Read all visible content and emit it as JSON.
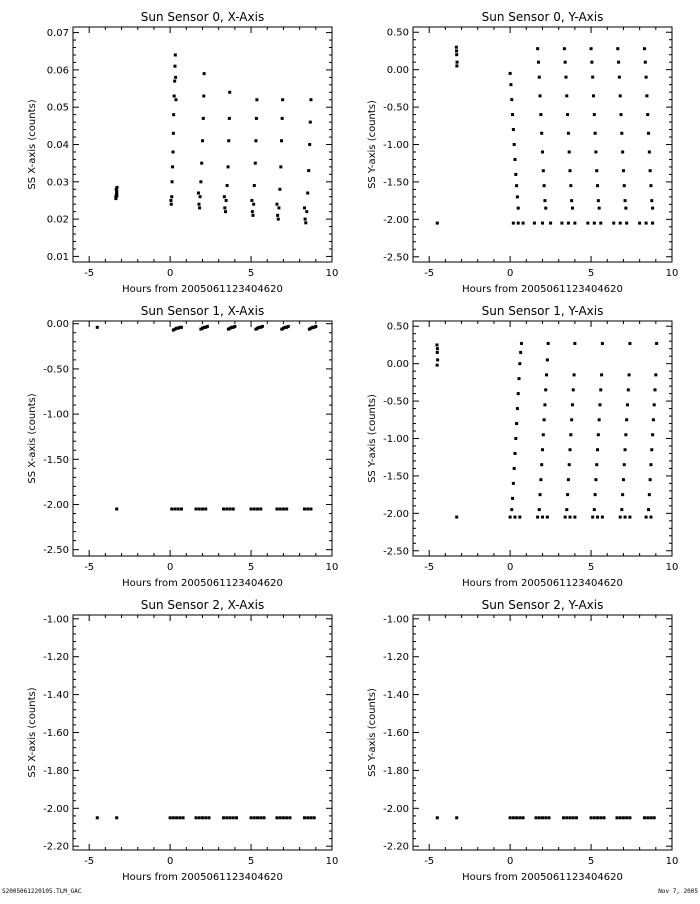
{
  "footer": {
    "left_label": "S2005061220105.TLM_GAC",
    "right_label": "Nov  7, 2005"
  },
  "colors": {
    "axis": "#000000",
    "points": "#000000",
    "background": "#ffffff"
  },
  "chart_data": [
    {
      "type": "scatter",
      "title": "Sun Sensor 0, X-Axis",
      "xlabel": "Hours from 2005061123404620",
      "ylabel": "SS X-axis (counts)",
      "xlim": [
        -6,
        10
      ],
      "ylim": [
        0.0085,
        0.0715
      ],
      "xticks": [
        -5,
        0,
        5,
        10
      ],
      "xtick_labels": [
        "-5",
        "0",
        "5",
        "10"
      ],
      "yticks": [
        0.01,
        0.02,
        0.03,
        0.04,
        0.05,
        0.06,
        0.07
      ],
      "ytick_labels": [
        "0.01",
        "0.02",
        "0.03",
        "0.04",
        "0.05",
        "0.06",
        "0.07"
      ],
      "grid": false,
      "series": [
        {
          "x": [
            -3.35,
            -3.32,
            -3.3,
            -3.28,
            -3.35,
            -3.3,
            -3.33,
            -3.29,
            0.05,
            0.07,
            0.1,
            0.12,
            0.15,
            0.18,
            0.2,
            0.22,
            0.25,
            0.28,
            0.3,
            0.32,
            0.34,
            0.36,
            1.75,
            1.78,
            1.82,
            1.85,
            1.9,
            1.95,
            2.0,
            2.05,
            2.08,
            2.1,
            3.35,
            3.38,
            3.42,
            3.46,
            3.52,
            3.58,
            3.62,
            3.66,
            3.68,
            5.05,
            5.08,
            5.12,
            5.16,
            5.2,
            5.26,
            5.3,
            5.33,
            5.36,
            6.6,
            6.64,
            6.68,
            6.72,
            6.78,
            6.84,
            6.88,
            6.92,
            6.95,
            8.3,
            8.34,
            8.38,
            8.44,
            8.5,
            8.56,
            8.62,
            8.66,
            8.7
          ],
          "y": [
            0.0255,
            0.0265,
            0.0275,
            0.0285,
            0.026,
            0.027,
            0.028,
            0.0262,
            0.025,
            0.024,
            0.026,
            0.03,
            0.034,
            0.038,
            0.043,
            0.048,
            0.053,
            0.057,
            0.061,
            0.064,
            0.058,
            0.052,
            0.027,
            0.024,
            0.023,
            0.026,
            0.03,
            0.035,
            0.041,
            0.047,
            0.053,
            0.059,
            0.026,
            0.023,
            0.022,
            0.025,
            0.029,
            0.034,
            0.041,
            0.047,
            0.054,
            0.025,
            0.022,
            0.021,
            0.024,
            0.029,
            0.035,
            0.041,
            0.047,
            0.052,
            0.024,
            0.021,
            0.02,
            0.023,
            0.028,
            0.034,
            0.041,
            0.047,
            0.052,
            0.023,
            0.02,
            0.019,
            0.022,
            0.027,
            0.033,
            0.04,
            0.046,
            0.052
          ]
        }
      ]
    },
    {
      "type": "scatter",
      "title": "Sun Sensor 0, Y-Axis",
      "xlabel": "Hours from 2005061123404620",
      "ylabel": "SS Y-axis (counts)",
      "xlim": [
        -6,
        10
      ],
      "ylim": [
        -2.57,
        0.57
      ],
      "xticks": [
        -5,
        0,
        5,
        10
      ],
      "xtick_labels": [
        "-5",
        "0",
        "5",
        "10"
      ],
      "yticks": [
        -2.5,
        -2.0,
        -1.5,
        -1.0,
        -0.5,
        0.0,
        0.5
      ],
      "ytick_labels": [
        "-2.50",
        "-2.00",
        "-1.50",
        "-1.00",
        "-0.50",
        "0.00",
        "0.50"
      ],
      "grid": false,
      "series": [
        {
          "x": [
            -4.5,
            -3.32,
            -3.3,
            -3.28,
            -3.31,
            -3.29,
            0.0,
            0.05,
            0.1,
            0.15,
            0.2,
            0.25,
            0.3,
            0.35,
            0.4,
            0.45,
            0.5,
            1.7,
            1.75,
            1.8,
            1.85,
            1.9,
            1.95,
            2.0,
            2.05,
            2.1,
            2.15,
            2.2,
            3.35,
            3.4,
            3.45,
            3.5,
            3.55,
            3.6,
            3.65,
            3.7,
            3.75,
            3.8,
            3.85,
            5.0,
            5.05,
            5.1,
            5.15,
            5.2,
            5.25,
            5.3,
            5.35,
            5.4,
            5.45,
            5.5,
            6.65,
            6.7,
            6.75,
            6.8,
            6.85,
            6.9,
            6.95,
            7.0,
            7.05,
            7.1,
            7.15,
            8.3,
            8.35,
            8.4,
            8.45,
            8.5,
            8.55,
            8.6,
            8.65,
            8.7,
            8.75,
            8.8,
            0.2,
            0.5,
            0.8,
            1.5,
            2.0,
            2.5,
            3.2,
            3.6,
            4.0,
            4.8,
            5.2,
            5.6,
            6.4,
            6.8,
            7.2,
            8.0,
            8.4,
            8.8
          ],
          "y": [
            -2.05,
            0.3,
            0.2,
            0.1,
            0.25,
            0.05,
            -0.05,
            -0.2,
            -0.4,
            -0.6,
            -0.8,
            -1.0,
            -1.2,
            -1.4,
            -1.55,
            -1.7,
            -1.85,
            0.28,
            0.1,
            -0.1,
            -0.35,
            -0.6,
            -0.85,
            -1.1,
            -1.35,
            -1.55,
            -1.75,
            -1.85,
            0.28,
            0.1,
            -0.1,
            -0.35,
            -0.6,
            -0.85,
            -1.1,
            -1.35,
            -1.55,
            -1.75,
            -1.85,
            0.28,
            0.1,
            -0.1,
            -0.35,
            -0.6,
            -0.85,
            -1.1,
            -1.35,
            -1.55,
            -1.75,
            -1.85,
            0.28,
            0.1,
            -0.1,
            -0.35,
            -0.6,
            -0.85,
            -1.1,
            -1.35,
            -1.55,
            -1.75,
            -1.85,
            0.28,
            0.1,
            -0.1,
            -0.35,
            -0.6,
            -0.85,
            -1.1,
            -1.35,
            -1.55,
            -1.75,
            -1.85,
            -2.05,
            -2.05,
            -2.05,
            -2.05,
            -2.05,
            -2.05,
            -2.05,
            -2.05,
            -2.05,
            -2.05,
            -2.05,
            -2.05,
            -2.05,
            -2.05,
            -2.05,
            -2.05,
            -2.05,
            -2.05
          ]
        }
      ]
    },
    {
      "type": "scatter",
      "title": "Sun Sensor 1, X-Axis",
      "xlabel": "Hours from 2005061123404620",
      "ylabel": "SS X-axis (counts)",
      "xlim": [
        -6,
        10
      ],
      "ylim": [
        -2.57,
        0.03
      ],
      "xticks": [
        -5,
        0,
        5,
        10
      ],
      "xtick_labels": [
        "-5",
        "0",
        "5",
        "10"
      ],
      "yticks": [
        -2.5,
        -2.0,
        -1.5,
        -1.0,
        -0.5,
        0.0
      ],
      "ytick_labels": [
        "-2.50",
        "-2.00",
        "-1.50",
        "-1.00",
        "-0.50",
        "0.00"
      ],
      "grid": false,
      "series": [
        {
          "x": [
            -4.5,
            -3.3,
            0.2,
            0.3,
            0.4,
            0.5,
            0.6,
            0.7,
            1.9,
            2.0,
            2.1,
            2.2,
            2.3,
            3.6,
            3.7,
            3.8,
            3.9,
            4.0,
            5.3,
            5.4,
            5.5,
            5.6,
            5.7,
            6.9,
            7.0,
            7.1,
            7.2,
            7.3,
            8.6,
            8.7,
            8.8,
            8.9,
            9.0,
            0.1,
            0.3,
            0.5,
            0.7,
            1.6,
            1.8,
            2.0,
            2.2,
            3.3,
            3.5,
            3.7,
            3.9,
            5.0,
            5.2,
            5.4,
            5.6,
            6.6,
            6.8,
            7.0,
            7.2,
            8.3,
            8.5,
            8.7
          ],
          "y": [
            -0.04,
            -2.05,
            -0.07,
            -0.06,
            -0.05,
            -0.05,
            -0.04,
            -0.04,
            -0.06,
            -0.05,
            -0.04,
            -0.04,
            -0.03,
            -0.06,
            -0.05,
            -0.04,
            -0.04,
            -0.03,
            -0.06,
            -0.05,
            -0.04,
            -0.04,
            -0.03,
            -0.06,
            -0.05,
            -0.04,
            -0.04,
            -0.03,
            -0.06,
            -0.05,
            -0.04,
            -0.04,
            -0.03,
            -2.05,
            -2.05,
            -2.05,
            -2.05,
            -2.05,
            -2.05,
            -2.05,
            -2.05,
            -2.05,
            -2.05,
            -2.05,
            -2.05,
            -2.05,
            -2.05,
            -2.05,
            -2.05,
            -2.05,
            -2.05,
            -2.05,
            -2.05,
            -2.05,
            -2.05,
            -2.05
          ]
        }
      ]
    },
    {
      "type": "scatter",
      "title": "Sun Sensor 1, Y-Axis",
      "xlabel": "Hours from 2005061123404620",
      "ylabel": "SS Y-axis (counts)",
      "xlim": [
        -6,
        10
      ],
      "ylim": [
        -2.57,
        0.57
      ],
      "xticks": [
        -5,
        0,
        5,
        10
      ],
      "xtick_labels": [
        "-5",
        "0",
        "5",
        "10"
      ],
      "yticks": [
        -2.5,
        -2.0,
        -1.5,
        -1.0,
        -0.5,
        0.0,
        0.5
      ],
      "ytick_labels": [
        "-2.50",
        "-2.00",
        "-1.50",
        "-1.00",
        "-0.50",
        "0.00",
        "0.50"
      ],
      "grid": false,
      "series": [
        {
          "x": [
            -4.52,
            -4.5,
            -4.48,
            -4.51,
            -4.49,
            -3.3,
            0.1,
            0.15,
            0.2,
            0.25,
            0.3,
            0.35,
            0.4,
            0.45,
            0.5,
            0.55,
            0.6,
            0.65,
            0.7,
            1.8,
            1.85,
            1.9,
            1.95,
            2.0,
            2.05,
            2.1,
            2.15,
            2.2,
            2.25,
            2.3,
            2.35,
            3.5,
            3.55,
            3.6,
            3.65,
            3.7,
            3.75,
            3.8,
            3.85,
            3.9,
            3.95,
            4.0,
            5.2,
            5.25,
            5.3,
            5.35,
            5.4,
            5.45,
            5.5,
            5.55,
            5.6,
            5.65,
            5.7,
            6.9,
            6.95,
            7.0,
            7.05,
            7.1,
            7.15,
            7.2,
            7.25,
            7.3,
            7.35,
            7.4,
            8.55,
            8.6,
            8.65,
            8.7,
            8.75,
            8.8,
            8.85,
            8.9,
            8.95,
            9.0,
            9.05,
            0.0,
            0.3,
            0.6,
            1.7,
            2.0,
            2.3,
            3.4,
            3.7,
            4.0,
            5.1,
            5.4,
            5.7,
            6.8,
            7.1,
            7.4,
            8.4,
            8.7
          ],
          "y": [
            0.25,
            0.15,
            0.05,
            -0.02,
            0.2,
            -2.05,
            -1.95,
            -1.8,
            -1.6,
            -1.4,
            -1.2,
            -1.0,
            -0.8,
            -0.6,
            -0.4,
            -0.2,
            0.0,
            0.15,
            0.27,
            -1.95,
            -1.75,
            -1.55,
            -1.35,
            -1.15,
            -0.95,
            -0.75,
            -0.55,
            -0.35,
            -0.15,
            0.05,
            0.27,
            -1.95,
            -1.75,
            -1.55,
            -1.35,
            -1.15,
            -0.95,
            -0.75,
            -0.55,
            -0.35,
            -0.15,
            0.27,
            -1.95,
            -1.75,
            -1.55,
            -1.35,
            -1.15,
            -0.95,
            -0.75,
            -0.55,
            -0.35,
            -0.15,
            0.27,
            -1.95,
            -1.75,
            -1.55,
            -1.35,
            -1.15,
            -0.95,
            -0.75,
            -0.55,
            -0.35,
            -0.15,
            0.27,
            -1.95,
            -1.75,
            -1.55,
            -1.35,
            -1.15,
            -0.95,
            -0.75,
            -0.55,
            -0.35,
            -0.15,
            0.27,
            -2.05,
            -2.05,
            -2.05,
            -2.05,
            -2.05,
            -2.05,
            -2.05,
            -2.05,
            -2.05,
            -2.05,
            -2.05,
            -2.05,
            -2.05,
            -2.05,
            -2.05,
            -2.05,
            -2.05
          ]
        }
      ]
    },
    {
      "type": "scatter",
      "title": "Sun Sensor 2, X-Axis",
      "xlabel": "Hours from 2005061123404620",
      "ylabel": "SS X-axis (counts)",
      "xlim": [
        -6,
        10
      ],
      "ylim": [
        -2.22,
        -0.98
      ],
      "xticks": [
        -5,
        0,
        5,
        10
      ],
      "xtick_labels": [
        "-5",
        "0",
        "5",
        "10"
      ],
      "yticks": [
        -2.2,
        -2.0,
        -1.8,
        -1.6,
        -1.4,
        -1.2,
        -1.0
      ],
      "ytick_labels": [
        "-2.20",
        "-2.00",
        "-1.80",
        "-1.60",
        "-1.40",
        "-1.20",
        "-1.00"
      ],
      "grid": false,
      "series": [
        {
          "x": [
            -4.5,
            -3.3,
            0.0,
            0.2,
            0.4,
            0.6,
            0.8,
            1.6,
            1.8,
            2.0,
            2.2,
            2.4,
            3.3,
            3.5,
            3.7,
            3.9,
            4.1,
            5.0,
            5.2,
            5.4,
            5.6,
            5.8,
            6.6,
            6.8,
            7.0,
            7.2,
            7.4,
            8.3,
            8.5,
            8.7,
            8.9
          ],
          "y": [
            -2.05,
            -2.05,
            -2.05,
            -2.05,
            -2.05,
            -2.05,
            -2.05,
            -2.05,
            -2.05,
            -2.05,
            -2.05,
            -2.05,
            -2.05,
            -2.05,
            -2.05,
            -2.05,
            -2.05,
            -2.05,
            -2.05,
            -2.05,
            -2.05,
            -2.05,
            -2.05,
            -2.05,
            -2.05,
            -2.05,
            -2.05,
            -2.05,
            -2.05,
            -2.05,
            -2.05
          ]
        }
      ]
    },
    {
      "type": "scatter",
      "title": "Sun Sensor 2, Y-Axis",
      "xlabel": "Hours from 2005061123404620",
      "ylabel": "SS Y-axis (counts)",
      "xlim": [
        -6,
        10
      ],
      "ylim": [
        -2.22,
        -0.98
      ],
      "xticks": [
        -5,
        0,
        5,
        10
      ],
      "xtick_labels": [
        "-5",
        "0",
        "5",
        "10"
      ],
      "yticks": [
        -2.2,
        -2.0,
        -1.8,
        -1.6,
        -1.4,
        -1.2,
        -1.0
      ],
      "ytick_labels": [
        "-2.20",
        "-2.00",
        "-1.80",
        "-1.60",
        "-1.40",
        "-1.20",
        "-1.00"
      ],
      "grid": false,
      "series": [
        {
          "x": [
            -4.5,
            -3.3,
            0.0,
            0.2,
            0.4,
            0.6,
            0.8,
            1.6,
            1.8,
            2.0,
            2.2,
            2.4,
            3.3,
            3.5,
            3.7,
            3.9,
            4.1,
            5.0,
            5.2,
            5.4,
            5.6,
            5.8,
            6.6,
            6.8,
            7.0,
            7.2,
            7.4,
            8.3,
            8.5,
            8.7,
            8.9
          ],
          "y": [
            -2.05,
            -2.05,
            -2.05,
            -2.05,
            -2.05,
            -2.05,
            -2.05,
            -2.05,
            -2.05,
            -2.05,
            -2.05,
            -2.05,
            -2.05,
            -2.05,
            -2.05,
            -2.05,
            -2.05,
            -2.05,
            -2.05,
            -2.05,
            -2.05,
            -2.05,
            -2.05,
            -2.05,
            -2.05,
            -2.05,
            -2.05,
            -2.05,
            -2.05,
            -2.05,
            -2.05
          ]
        }
      ]
    }
  ]
}
